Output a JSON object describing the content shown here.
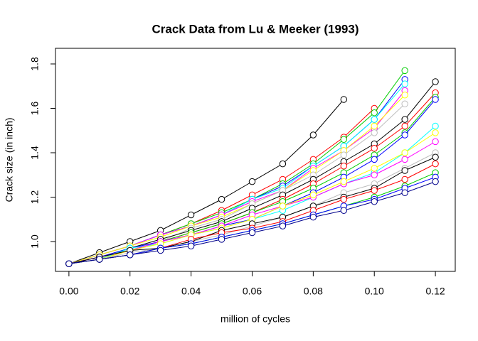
{
  "chart_data": {
    "type": "line",
    "title": "Crack Data from Lu & Meeker (1993)",
    "x_label": "million of cycles",
    "y_label": "Crack size (in inch)",
    "x": [
      0,
      0.01,
      0.02,
      0.03,
      0.04,
      0.05,
      0.06,
      0.07,
      0.08,
      0.09,
      0.1,
      0.11,
      0.12
    ],
    "xlim": [
      -0.0044,
      0.1265
    ],
    "ylim": [
      0.8656,
      1.8704
    ],
    "xticks": [
      {
        "value": 0,
        "label": "0.00"
      },
      0.02,
      0.04,
      0.06,
      0.08,
      {
        "value": 0.1,
        "label": "0.10"
      },
      0.12
    ],
    "yticks": [
      {
        "value": 1,
        "label": "1.0"
      },
      1.2,
      1.4,
      1.6,
      1.8
    ],
    "series": [
      {
        "color": "#000000",
        "values": [
          0.9,
          0.95,
          1.0,
          1.05,
          1.12,
          1.19,
          1.27,
          1.35,
          1.48,
          1.64,
          null,
          null,
          null
        ]
      },
      {
        "color": "#ff0000",
        "values": [
          0.9,
          0.94,
          0.98,
          1.03,
          1.08,
          1.14,
          1.21,
          1.28,
          1.37,
          1.47,
          1.6,
          null,
          null
        ]
      },
      {
        "color": "#00cd00",
        "values": [
          0.9,
          0.94,
          0.98,
          1.03,
          1.08,
          1.13,
          1.19,
          1.26,
          1.35,
          1.46,
          1.58,
          1.77,
          null
        ]
      },
      {
        "color": "#0000ff",
        "values": [
          0.9,
          0.94,
          0.98,
          1.03,
          1.07,
          1.12,
          1.19,
          1.25,
          1.34,
          1.43,
          1.55,
          1.73,
          null
        ]
      },
      {
        "color": "#00ffff",
        "values": [
          0.9,
          0.94,
          0.98,
          1.03,
          1.07,
          1.12,
          1.19,
          1.24,
          1.34,
          1.43,
          1.55,
          1.71,
          null
        ]
      },
      {
        "color": "#ff00ff",
        "values": [
          0.9,
          0.94,
          0.98,
          1.03,
          1.07,
          1.12,
          1.18,
          1.23,
          1.33,
          1.41,
          1.51,
          1.68,
          null
        ]
      },
      {
        "color": "#ffff00",
        "values": [
          0.9,
          0.94,
          0.98,
          1.02,
          1.07,
          1.11,
          1.17,
          1.23,
          1.32,
          1.41,
          1.52,
          1.66,
          null
        ]
      },
      {
        "color": "#bebebe",
        "values": [
          0.9,
          0.93,
          0.97,
          1.0,
          1.06,
          1.1,
          1.17,
          1.23,
          1.3,
          1.39,
          1.49,
          1.62,
          null
        ]
      },
      {
        "color": "#000000",
        "values": [
          0.9,
          0.92,
          0.97,
          1.01,
          1.05,
          1.09,
          1.15,
          1.21,
          1.28,
          1.36,
          1.44,
          1.55,
          1.72
        ]
      },
      {
        "color": "#ff0000",
        "values": [
          0.9,
          0.92,
          0.96,
          1.0,
          1.04,
          1.08,
          1.13,
          1.19,
          1.26,
          1.34,
          1.42,
          1.52,
          1.67
        ]
      },
      {
        "color": "#00cd00",
        "values": [
          0.9,
          0.93,
          0.96,
          1.0,
          1.04,
          1.08,
          1.13,
          1.18,
          1.24,
          1.31,
          1.39,
          1.49,
          1.65
        ]
      },
      {
        "color": "#0000ff",
        "values": [
          0.9,
          0.93,
          0.97,
          1.0,
          1.03,
          1.07,
          1.1,
          1.16,
          1.22,
          1.29,
          1.37,
          1.48,
          1.64
        ]
      },
      {
        "color": "#00ffff",
        "values": [
          0.9,
          0.92,
          0.97,
          0.99,
          1.03,
          1.06,
          1.1,
          1.14,
          1.2,
          1.26,
          1.31,
          1.4,
          1.52
        ]
      },
      {
        "color": "#ff00ff",
        "values": [
          0.9,
          0.93,
          0.96,
          1.0,
          1.03,
          1.07,
          1.12,
          1.16,
          1.2,
          1.26,
          1.3,
          1.37,
          1.45
        ]
      },
      {
        "color": "#ffff00",
        "values": [
          0.9,
          0.92,
          0.96,
          0.99,
          1.03,
          1.06,
          1.1,
          1.16,
          1.21,
          1.27,
          1.33,
          1.4,
          1.49
        ]
      },
      {
        "color": "#bebebe",
        "values": [
          0.9,
          0.92,
          0.95,
          0.97,
          1.0,
          1.03,
          1.07,
          1.11,
          1.16,
          1.22,
          1.26,
          1.33,
          1.4
        ]
      },
      {
        "color": "#000000",
        "values": [
          0.9,
          0.93,
          0.96,
          0.97,
          1.0,
          1.05,
          1.08,
          1.11,
          1.16,
          1.2,
          1.24,
          1.32,
          1.38
        ]
      },
      {
        "color": "#ff0000",
        "values": [
          0.9,
          0.92,
          0.94,
          0.97,
          1.01,
          1.04,
          1.06,
          1.09,
          1.14,
          1.19,
          1.23,
          1.28,
          1.35
        ]
      },
      {
        "color": "#00cd00",
        "values": [
          0.9,
          0.92,
          0.94,
          0.97,
          0.99,
          1.02,
          1.05,
          1.08,
          1.12,
          1.16,
          1.2,
          1.25,
          1.31
        ]
      },
      {
        "color": "#0000ff",
        "values": [
          0.9,
          0.92,
          0.94,
          0.97,
          0.99,
          1.02,
          1.05,
          1.08,
          1.12,
          1.16,
          1.19,
          1.24,
          1.29
        ]
      },
      {
        "color": "#00008b",
        "values": [
          0.9,
          0.92,
          0.94,
          0.96,
          0.98,
          1.01,
          1.04,
          1.07,
          1.11,
          1.14,
          1.18,
          1.22,
          1.27
        ]
      }
    ]
  }
}
